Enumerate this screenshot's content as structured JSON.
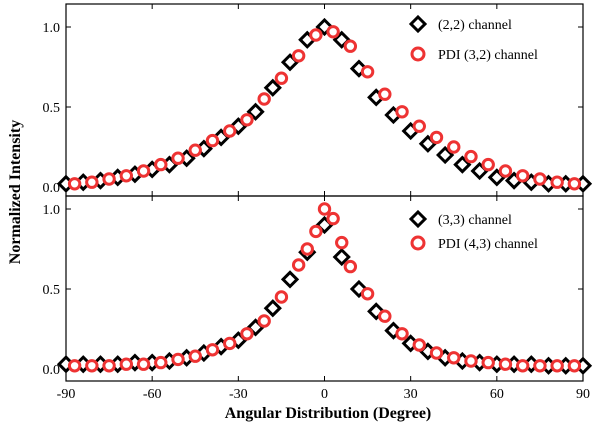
{
  "chart_data": [
    {
      "type": "scatter",
      "panel": "top",
      "xlim": [
        -90,
        90
      ],
      "ylim": [
        0,
        1.1
      ],
      "yticks": [
        "0.0",
        "0.5",
        "1.0"
      ],
      "series": [
        {
          "name": "(2,2) channel",
          "marker": "diamond",
          "color": "#000000",
          "x": [
            -90,
            -84,
            -78,
            -72,
            -66,
            -60,
            -54,
            -48,
            -42,
            -36,
            -30,
            -24,
            -18,
            -12,
            -6,
            0,
            6,
            12,
            18,
            24,
            30,
            36,
            42,
            48,
            54,
            60,
            66,
            72,
            78,
            84,
            90
          ],
          "y": [
            0.02,
            0.03,
            0.04,
            0.06,
            0.08,
            0.11,
            0.14,
            0.18,
            0.24,
            0.31,
            0.38,
            0.47,
            0.62,
            0.78,
            0.92,
            1.0,
            0.92,
            0.74,
            0.56,
            0.45,
            0.35,
            0.27,
            0.2,
            0.14,
            0.1,
            0.06,
            0.04,
            0.03,
            0.02,
            0.02,
            0.02
          ]
        },
        {
          "name": "PDI (3,2) channel",
          "marker": "circle",
          "color": "#ee3333",
          "x": [
            -87,
            -81,
            -75,
            -69,
            -63,
            -57,
            -51,
            -45,
            -39,
            -33,
            -27,
            -21,
            -15,
            -9,
            -3,
            3,
            9,
            15,
            21,
            27,
            33,
            39,
            45,
            51,
            57,
            63,
            69,
            75,
            81,
            87
          ],
          "y": [
            0.02,
            0.03,
            0.05,
            0.07,
            0.1,
            0.14,
            0.18,
            0.23,
            0.29,
            0.35,
            0.42,
            0.55,
            0.68,
            0.82,
            0.95,
            0.97,
            0.88,
            0.72,
            0.58,
            0.47,
            0.38,
            0.31,
            0.25,
            0.19,
            0.14,
            0.1,
            0.07,
            0.05,
            0.03,
            0.02
          ]
        }
      ]
    },
    {
      "type": "scatter",
      "panel": "bottom",
      "xlim": [
        -90,
        90
      ],
      "ylim": [
        0,
        1.1
      ],
      "yticks": [
        "0.0",
        "0.5",
        "1.0"
      ],
      "xticks": [
        "-90",
        "-60",
        "-30",
        "0",
        "30",
        "60",
        "90"
      ],
      "xlabel": "Angular Distribution (Degree)",
      "series": [
        {
          "name": "(3,3) channel",
          "marker": "diamond",
          "color": "#000000",
          "x": [
            -90,
            -84,
            -78,
            -72,
            -66,
            -60,
            -54,
            -48,
            -42,
            -36,
            -30,
            -24,
            -18,
            -12,
            -6,
            0,
            6,
            12,
            18,
            24,
            30,
            36,
            42,
            48,
            54,
            60,
            66,
            72,
            78,
            84,
            90
          ],
          "y": [
            0.03,
            0.03,
            0.03,
            0.03,
            0.04,
            0.04,
            0.05,
            0.07,
            0.1,
            0.14,
            0.18,
            0.26,
            0.38,
            0.56,
            0.73,
            0.9,
            0.7,
            0.5,
            0.36,
            0.24,
            0.16,
            0.11,
            0.07,
            0.05,
            0.04,
            0.03,
            0.03,
            0.03,
            0.02,
            0.02,
            0.02
          ]
        },
        {
          "name": "PDI (4,3) channel",
          "marker": "circle",
          "color": "#ee3333",
          "x": [
            -87,
            -81,
            -75,
            -69,
            -63,
            -57,
            -51,
            -45,
            -39,
            -33,
            -27,
            -21,
            -15,
            -9,
            -6,
            -3,
            0,
            3,
            6,
            9,
            15,
            21,
            27,
            33,
            39,
            45,
            51,
            57,
            63,
            69,
            75,
            81,
            87
          ],
          "y": [
            0.02,
            0.02,
            0.02,
            0.03,
            0.03,
            0.04,
            0.06,
            0.08,
            0.12,
            0.16,
            0.22,
            0.3,
            0.45,
            0.65,
            0.75,
            0.86,
            1.0,
            0.94,
            0.79,
            0.64,
            0.47,
            0.33,
            0.22,
            0.15,
            0.1,
            0.07,
            0.05,
            0.04,
            0.03,
            0.02,
            0.02,
            0.02,
            0.02
          ]
        }
      ]
    }
  ],
  "ylabel": "Normalized Intensity"
}
